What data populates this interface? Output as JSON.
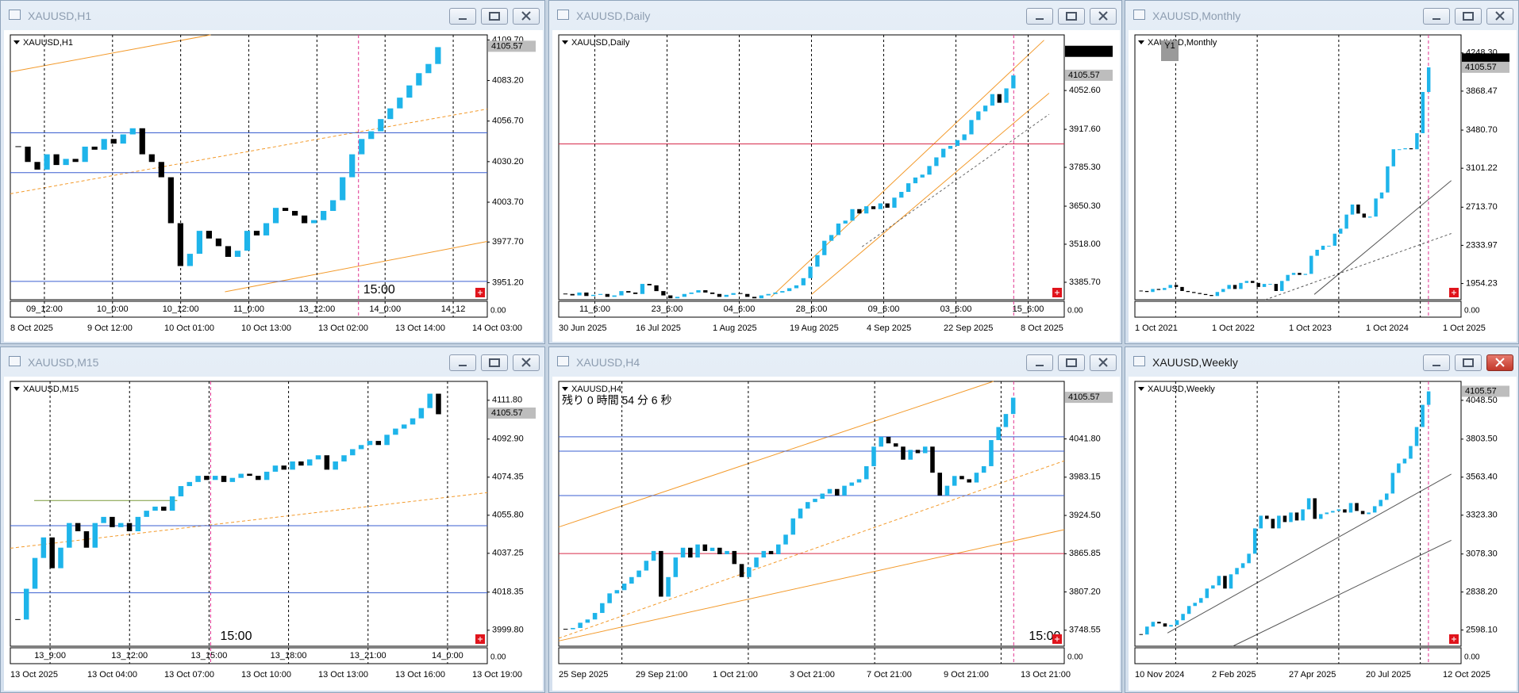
{
  "bull_color": "#1eb4ea",
  "bear_color": "#000000",
  "windows": [
    {
      "title": "XAUUSD,H1",
      "chart_label": "XAUUSD,H1",
      "closes": [
        4040,
        4030,
        4025,
        4035,
        4028,
        4032,
        4030,
        4040,
        4038,
        4045,
        4042,
        4048,
        4052,
        4035,
        4030,
        4020,
        3990,
        3962,
        3970,
        3985,
        3980,
        3975,
        3968,
        3972,
        3985,
        3982,
        3990,
        4000,
        3998,
        3995,
        3990,
        3992,
        3998,
        4005,
        4020,
        4035,
        4045,
        4050,
        4058,
        4065,
        4072,
        4080,
        4088,
        4094,
        4105
      ],
      "ylim": [
        3940,
        4113
      ],
      "yticks": [
        {
          "value": 4109.7,
          "label": "4109.70"
        },
        {
          "value": 4083.2,
          "label": "4083.20"
        },
        {
          "value": 4056.7,
          "label": "4056.70"
        },
        {
          "value": 4030.2,
          "label": "4030.20"
        },
        {
          "value": 4003.7,
          "label": "4003.70"
        },
        {
          "value": 3977.7,
          "label": "3977.70"
        },
        {
          "value": 3951.2,
          "label": "3951.20"
        }
      ],
      "price_tags": [
        {
          "value": 4105.57,
          "color": "#bdbdbd"
        }
      ],
      "levels": [
        {
          "value": 4049,
          "color": "#3a5fd0"
        },
        {
          "value": 4023,
          "color": "#3a5fd0"
        },
        {
          "value": 3952,
          "color": "#3a5fd0"
        }
      ],
      "period_labels": [
        "09_12:00",
        "10_0:00",
        "10_12:00",
        "11_0:00",
        "13_12:00",
        "14_0:00",
        "14_12"
      ],
      "date_labels": [
        "8 Oct 2025",
        "9 Oct 12:00",
        "10 Oct 01:00",
        "10 Oct 13:00",
        "13 Oct 02:00",
        "13 Oct 14:00",
        "14 Oct 03:00"
      ],
      "sub_scale": "0.00",
      "marker_time": "15:00"
    },
    {
      "title": "XAUUSD,Daily",
      "chart_label": "XAUUSD,Daily",
      "closes": [
        3345,
        3340,
        3350,
        3338,
        3342,
        3345,
        3335,
        3340,
        3355,
        3350,
        3345,
        3380,
        3375,
        3355,
        3340,
        3330,
        3335,
        3345,
        3350,
        3358,
        3350,
        3345,
        3335,
        3342,
        3348,
        3345,
        3335,
        3330,
        3340,
        3345,
        3350,
        3355,
        3365,
        3375,
        3400,
        3440,
        3480,
        3530,
        3550,
        3590,
        3600,
        3640,
        3625,
        3650,
        3640,
        3660,
        3645,
        3680,
        3700,
        3730,
        3750,
        3760,
        3790,
        3820,
        3850,
        3860,
        3880,
        3900,
        3950,
        3980,
        4000,
        4040,
        4010,
        4060,
        4105
      ],
      "ylim": [
        3325,
        4246
      ],
      "yticks": [
        {
          "value": 4052.6,
          "label": "4052.60"
        },
        {
          "value": 3917.6,
          "label": "3917.60"
        },
        {
          "value": 3785.3,
          "label": "3785.30"
        },
        {
          "value": 3650.3,
          "label": "3650.30"
        },
        {
          "value": 3518,
          "label": "3518.00"
        },
        {
          "value": 3385.7,
          "label": "3385.70"
        }
      ],
      "price_tags": [
        {
          "value": 4188.88,
          "color": "#000000"
        },
        {
          "value": 4105.57,
          "color": "#bdbdbd"
        }
      ],
      "levels": [
        {
          "value": 3867,
          "color": "#d62a4a"
        }
      ],
      "period_labels": [
        "11_6:00",
        "23_6:00",
        "04_6:00",
        "28_6:00",
        "09_6:00",
        "03_6:00",
        "15_6:00"
      ],
      "date_labels": [
        "30 Jun 2025",
        "16 Jul 2025",
        "1 Aug 2025",
        "19 Aug 2025",
        "4 Sep 2025",
        "22 Sep 2025",
        "8 Oct 2025"
      ],
      "sub_scale": "0.00"
    },
    {
      "title": "XAUUSD,Monthly",
      "chart_label": "XAUUSD,Monthly",
      "closes": [
        1880,
        1870,
        1900,
        1890,
        1910,
        1940,
        1920,
        1880,
        1870,
        1860,
        1850,
        1840,
        1830,
        1870,
        1900,
        1940,
        1900,
        1960,
        1980,
        1960,
        1920,
        1950,
        1950,
        1880,
        1980,
        2040,
        2060,
        2040,
        2050,
        2230,
        2290,
        2330,
        2330,
        2450,
        2500,
        2640,
        2740,
        2650,
        2610,
        2620,
        2800,
        2860,
        3120,
        3290,
        3290,
        3300,
        3290,
        3450,
        3860,
        4105
      ],
      "ylim": [
        1793,
        4428
      ],
      "yticks": [
        {
          "value": 4248.3,
          "label": "4248.30"
        },
        {
          "value": 3868.47,
          "label": "3868.47"
        },
        {
          "value": 3480.7,
          "label": "3480.70"
        },
        {
          "value": 3101.22,
          "label": "3101.22"
        },
        {
          "value": 2713.7,
          "label": "2713.70"
        },
        {
          "value": 2333.97,
          "label": "2333.97"
        },
        {
          "value": 1954.23,
          "label": "1954.23"
        }
      ],
      "price_tags": [
        {
          "value": 4188.88,
          "color": "#000000"
        },
        {
          "value": 4105.57,
          "color": "#bdbdbd"
        }
      ],
      "levels": [],
      "period_labels": [],
      "date_labels": [
        "1 Oct 2021",
        "1 Oct 2022",
        "1 Oct 2023",
        "1 Oct 2024",
        "1 Oct 2025"
      ],
      "sub_scale": "0.00",
      "y1_label": "Y1"
    },
    {
      "title": "XAUUSD,M15",
      "chart_label": "XAUUSD,M15",
      "closes": [
        4005,
        4020,
        4035,
        4045,
        4030,
        4040,
        4052,
        4048,
        4040,
        4052,
        4055,
        4050,
        4052,
        4048,
        4055,
        4058,
        4060,
        4058,
        4065,
        4070,
        4072,
        4075,
        4073,
        4075,
        4072,
        4074,
        4076,
        4075,
        4073,
        4077,
        4080,
        4078,
        4082,
        4080,
        4083,
        4085,
        4078,
        4082,
        4085,
        4088,
        4090,
        4092,
        4090,
        4095,
        4098,
        4100,
        4103,
        4108,
        4115,
        4105
      ],
      "ylim": [
        3992,
        4121
      ],
      "yticks": [
        {
          "value": 4111.8,
          "label": "4111.80"
        },
        {
          "value": 4092.9,
          "label": "4092.90"
        },
        {
          "value": 4074.35,
          "label": "4074.35"
        },
        {
          "value": 4055.8,
          "label": "4055.80"
        },
        {
          "value": 4037.25,
          "label": "4037.25"
        },
        {
          "value": 4018.35,
          "label": "4018.35"
        },
        {
          "value": 3999.8,
          "label": "3999.80"
        }
      ],
      "price_tags": [
        {
          "value": 4105.57,
          "color": "#bdbdbd"
        }
      ],
      "levels": [
        {
          "value": 4050.7,
          "color": "#3a5fd0"
        },
        {
          "value": 4018,
          "color": "#3a5fd0"
        }
      ],
      "period_labels": [
        "13_9:00",
        "13_12:00",
        "13_15:00",
        "13_18:00",
        "13_21:00",
        "14_0:00"
      ],
      "date_labels": [
        "13 Oct 2025",
        "13 Oct 04:00",
        "13 Oct 07:00",
        "13 Oct 10:00",
        "13 Oct 13:00",
        "13 Oct 16:00",
        "13 Oct 19:00"
      ],
      "sub_scale": "0.00",
      "marker_time": "15:00"
    },
    {
      "title": "XAUUSD,H4",
      "chart_label": "XAUUSD,H4",
      "closes": [
        3750,
        3752,
        3760,
        3765,
        3775,
        3790,
        3805,
        3810,
        3820,
        3830,
        3840,
        3855,
        3870,
        3800,
        3830,
        3860,
        3875,
        3860,
        3880,
        3870,
        3875,
        3865,
        3870,
        3850,
        3830,
        3845,
        3860,
        3870,
        3865,
        3880,
        3895,
        3920,
        3935,
        3945,
        3950,
        3958,
        3965,
        3955,
        3970,
        3975,
        3980,
        4000,
        4030,
        4045,
        4035,
        4030,
        4010,
        4025,
        4020,
        4030,
        3990,
        3955,
        3970,
        3985,
        3980,
        3975,
        3990,
        4000,
        4040,
        4060,
        4080,
        4105
      ],
      "ylim": [
        3724,
        4130
      ],
      "yticks": [
        {
          "value": 4041.8,
          "label": "4041.80"
        },
        {
          "value": 3983.15,
          "label": "3983.15"
        },
        {
          "value": 3924.5,
          "label": "3924.50"
        },
        {
          "value": 3865.85,
          "label": "3865.85"
        },
        {
          "value": 3807.2,
          "label": "3807.20"
        },
        {
          "value": 3748.55,
          "label": "3748.55"
        }
      ],
      "price_tags": [
        {
          "value": 4105.57,
          "color": "#bdbdbd"
        }
      ],
      "levels": [
        {
          "value": 3866,
          "color": "#d62a4a"
        },
        {
          "value": 4045,
          "color": "#3a5fd0"
        },
        {
          "value": 4023,
          "color": "#3a5fd0"
        },
        {
          "value": 3955,
          "color": "#3a5fd0"
        }
      ],
      "period_labels": [],
      "date_labels": [
        "25 Sep 2025",
        "29 Sep 21:00",
        "1 Oct 21:00",
        "3 Oct 21:00",
        "7 Oct 21:00",
        "9 Oct 21:00",
        "13 Oct 21:00"
      ],
      "sub_scale": "0.00",
      "marker_time": "15:00",
      "timer_text": "残り 0 時間 54 分 6 秒"
    },
    {
      "title": "XAUUSD,Weekly",
      "chart_label": "XAUUSD,Weekly",
      "active": true,
      "closes": [
        2570,
        2620,
        2650,
        2640,
        2620,
        2630,
        2660,
        2700,
        2750,
        2770,
        2800,
        2860,
        2880,
        2940,
        2860,
        2950,
        2990,
        3020,
        3080,
        3240,
        3320,
        3300,
        3240,
        3320,
        3280,
        3340,
        3290,
        3360,
        3430,
        3300,
        3330,
        3340,
        3350,
        3360,
        3340,
        3400,
        3350,
        3330,
        3340,
        3380,
        3420,
        3460,
        3590,
        3650,
        3680,
        3760,
        3880,
        4020,
        4105
      ],
      "ylim": [
        2496,
        4168
      ],
      "yticks": [
        {
          "value": 4048.5,
          "label": "4048.50"
        },
        {
          "value": 3803.5,
          "label": "3803.50"
        },
        {
          "value": 3563.4,
          "label": "3563.40"
        },
        {
          "value": 3323.3,
          "label": "3323.30"
        },
        {
          "value": 3078.3,
          "label": "3078.30"
        },
        {
          "value": 2838.2,
          "label": "2838.20"
        },
        {
          "value": 2598.1,
          "label": "2598.10"
        }
      ],
      "price_tags": [
        {
          "value": 4105.57,
          "color": "#bdbdbd"
        }
      ],
      "levels": [],
      "period_labels": [],
      "date_labels": [
        "10 Nov 2024",
        "2 Feb 2025",
        "27 Apr 2025",
        "20 Jul 2025",
        "12 Oct 2025"
      ],
      "sub_scale": "0.00"
    }
  ]
}
